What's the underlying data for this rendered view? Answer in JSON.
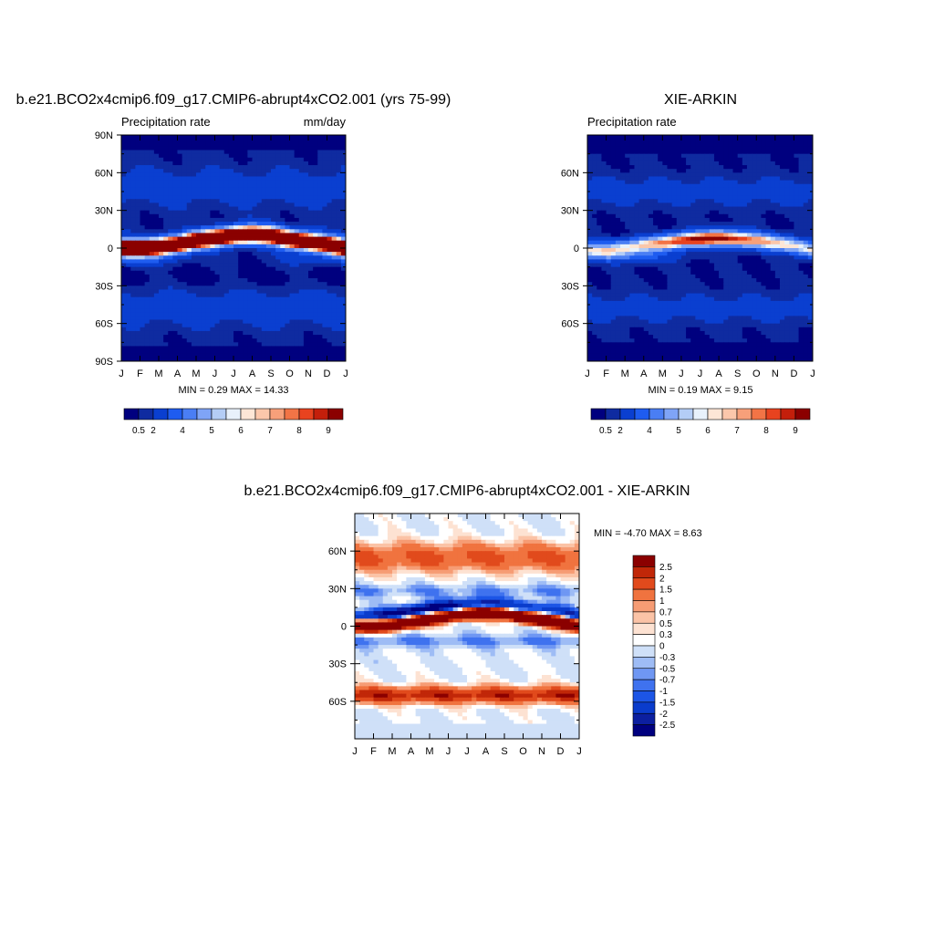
{
  "colors": {
    "abs_scale": [
      "#00007f",
      "#0f2ba0",
      "#0a3fd0",
      "#1e5cf0",
      "#4a7ef4",
      "#7fa4f6",
      "#b4cdf6",
      "#e8f1fb",
      "#fde6d6",
      "#fbc7ab",
      "#f7a07a",
      "#f27446",
      "#e8431f",
      "#c41f0b",
      "#8b0000"
    ],
    "diff_scale": [
      "#00007f",
      "#0c1fa0",
      "#0a3ccc",
      "#1c55e6",
      "#3f72ef",
      "#6f97f3",
      "#9ebcf5",
      "#cfe0f8",
      "#ffffff",
      "#fde2d2",
      "#fbc3a6",
      "#f69c74",
      "#f0733f",
      "#e14a1c",
      "#c12708",
      "#8b0000"
    ]
  },
  "months": [
    "J",
    "F",
    "M",
    "A",
    "M",
    "J",
    "J",
    "A",
    "S",
    "O",
    "N",
    "D",
    "J"
  ],
  "panel_model": {
    "title": "b.e21.BCO2x4cmip6.f09_g17.CMIP6-abrupt4xCO2.001 (yrs 75-99)",
    "left_label": "Precipitation rate",
    "right_label": "mm/day",
    "lat_labels": [
      "90N",
      "60N",
      "30N",
      "0",
      "30S",
      "60S",
      "90S"
    ],
    "stats": "MIN =   0.29 MAX =  14.33"
  },
  "panel_obs": {
    "title": "XIE-ARKIN",
    "left_label": "Precipitation rate",
    "lat_labels": [
      "60N",
      "30N",
      "0",
      "30S",
      "60S"
    ],
    "stats": "MIN =   0.19 MAX =   9.15"
  },
  "panel_diff": {
    "title": "b.e21.BCO2x4cmip6.f09_g17.CMIP6-abrupt4xCO2.001 - XIE-ARKIN",
    "lat_labels": [
      "60N",
      "30N",
      "0",
      "30S",
      "60S"
    ],
    "stats": "MIN =  -4.70 MAX =   8.63"
  },
  "colorbar_abs": {
    "labels": [
      "0.5",
      "2",
      "4",
      "5",
      "6",
      "7",
      "8",
      "9"
    ]
  },
  "colorbar_diff": {
    "labels": [
      "2.5",
      "2",
      "1.5",
      "1",
      "0.7",
      "0.5",
      "0.3",
      "0",
      "-0.3",
      "-0.5",
      "-0.7",
      "-1",
      "-1.5",
      "-2",
      "-2.5"
    ]
  },
  "chart_data": [
    {
      "type": "heatmap",
      "title": "b.e21.BCO2x4cmip6.f09_g17.CMIP6-abrupt4xCO2.001 (yrs 75-99)",
      "subtitle_left": "Precipitation rate",
      "subtitle_right": "mm/day",
      "x": [
        "J",
        "F",
        "M",
        "A",
        "M",
        "J",
        "J",
        "A",
        "S",
        "O",
        "N",
        "D",
        "J"
      ],
      "y_ticks": [
        "90N",
        "60N",
        "30N",
        "0",
        "30S",
        "60S",
        "90S"
      ],
      "ylim": [
        -90,
        90
      ],
      "min": 0.29,
      "max": 14.33,
      "colorbar_levels": [
        0.5,
        2,
        4,
        5,
        6,
        7,
        8,
        9
      ],
      "itcz_lat_by_month": [
        0,
        0,
        1,
        3,
        6,
        8,
        10,
        11,
        10,
        7,
        5,
        3,
        0
      ],
      "itcz_peak": 14.33
    },
    {
      "type": "heatmap",
      "title": "XIE-ARKIN",
      "subtitle_left": "Precipitation rate",
      "x": [
        "J",
        "F",
        "M",
        "A",
        "M",
        "J",
        "J",
        "A",
        "S",
        "O",
        "N",
        "D",
        "J"
      ],
      "y_ticks": [
        "60N",
        "30N",
        "0",
        "30S",
        "60S"
      ],
      "ylim": [
        -90,
        90
      ],
      "min": 0.19,
      "max": 9.15,
      "colorbar_levels": [
        0.5,
        2,
        4,
        5,
        6,
        7,
        8,
        9
      ],
      "itcz_lat_by_month": [
        -2,
        -2,
        0,
        2,
        4,
        6,
        7,
        8,
        7,
        6,
        4,
        2,
        -2
      ],
      "itcz_peak": 9.15
    },
    {
      "type": "heatmap",
      "title": "b.e21.BCO2x4cmip6.f09_g17.CMIP6-abrupt4xCO2.001 - XIE-ARKIN",
      "x": [
        "J",
        "F",
        "M",
        "A",
        "M",
        "J",
        "J",
        "A",
        "S",
        "O",
        "N",
        "D",
        "J"
      ],
      "y_ticks": [
        "60N",
        "30N",
        "0",
        "30S",
        "60S"
      ],
      "ylim": [
        -90,
        90
      ],
      "min": -4.7,
      "max": 8.63,
      "colorbar_levels": [
        -2.5,
        -2,
        -1.5,
        -1,
        -0.7,
        -0.5,
        -0.3,
        0,
        0.3,
        0.5,
        0.7,
        1,
        1.5,
        2,
        2.5
      ]
    }
  ]
}
